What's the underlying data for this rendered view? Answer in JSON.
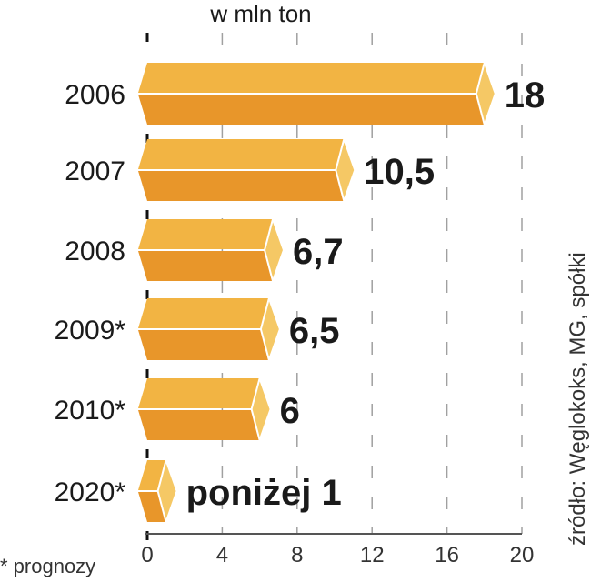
{
  "chart_data": {
    "type": "bar",
    "orientation": "horizontal",
    "unit_label": "w mln ton",
    "categories": [
      "2006",
      "2007",
      "2008",
      "2009*",
      "2010*",
      "2020*"
    ],
    "values": [
      18,
      10.5,
      6.7,
      6.5,
      6,
      null
    ],
    "value_labels": [
      "18",
      "10,5",
      "6,7",
      "6,5",
      "6",
      "poniżej 1"
    ],
    "xlim": [
      0,
      20
    ],
    "xticks": [
      "0",
      "4",
      "8",
      "12",
      "16",
      "20"
    ],
    "grid": true,
    "footnote": "* prognozy",
    "source": "źródło: Węglokoks, MG, spółki",
    "colors": {
      "top": "#F2B443",
      "bottom": "#E8962A",
      "cap": "#F5C865",
      "grid": "#a0a0a0"
    }
  }
}
